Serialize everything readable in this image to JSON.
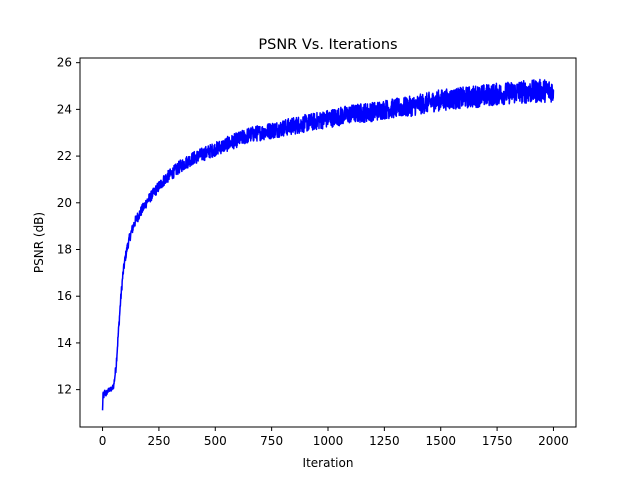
{
  "chart_data": {
    "type": "line",
    "title": "PSNR Vs. Iterations",
    "xlabel": "Iteration",
    "ylabel": "PSNR (dB)",
    "xlim": [
      -100,
      2100
    ],
    "ylim": [
      10.4,
      26.2
    ],
    "xticks": [
      0,
      250,
      500,
      750,
      1000,
      1250,
      1500,
      1750,
      2000
    ],
    "yticks": [
      12,
      14,
      16,
      18,
      20,
      22,
      24,
      26
    ],
    "grid": false,
    "series": [
      {
        "color": "#0000ff",
        "x": [
          0,
          2,
          5,
          10,
          15,
          20,
          30,
          40,
          50,
          60,
          70,
          80,
          90,
          100,
          110,
          120,
          130,
          140,
          150,
          175,
          200,
          225,
          250,
          275,
          300,
          350,
          400,
          450,
          500,
          550,
          600,
          650,
          700,
          750,
          800,
          850,
          900,
          950,
          1000,
          1050,
          1100,
          1150,
          1200,
          1250,
          1300,
          1350,
          1400,
          1450,
          1500,
          1550,
          1600,
          1650,
          1700,
          1750,
          1800,
          1850,
          1900,
          1950,
          2000
        ],
        "y": [
          11.1,
          11.8,
          11.7,
          11.9,
          11.8,
          11.9,
          12.0,
          12.0,
          12.2,
          13.0,
          14.4,
          15.8,
          16.9,
          17.6,
          18.1,
          18.5,
          18.8,
          19.1,
          19.3,
          19.7,
          20.1,
          20.4,
          20.7,
          21.0,
          21.2,
          21.6,
          21.9,
          22.1,
          22.3,
          22.5,
          22.7,
          22.9,
          23.0,
          23.1,
          23.2,
          23.3,
          23.4,
          23.5,
          23.6,
          23.7,
          23.8,
          23.85,
          23.9,
          24.0,
          24.05,
          24.1,
          24.2,
          24.3,
          24.4,
          24.45,
          24.5,
          24.55,
          24.6,
          24.65,
          24.7,
          24.75,
          24.75,
          24.8,
          24.8
        ],
        "noise": [
          0.05,
          0.12,
          0.12,
          0.15,
          0.12,
          0.12,
          0.1,
          0.1,
          0.15,
          0.2,
          0.2,
          0.2,
          0.2,
          0.2,
          0.2,
          0.2,
          0.22,
          0.22,
          0.22,
          0.22,
          0.22,
          0.22,
          0.24,
          0.25,
          0.26,
          0.28,
          0.28,
          0.3,
          0.3,
          0.32,
          0.32,
          0.34,
          0.34,
          0.36,
          0.36,
          0.38,
          0.38,
          0.38,
          0.4,
          0.4,
          0.4,
          0.42,
          0.42,
          0.42,
          0.42,
          0.44,
          0.44,
          0.44,
          0.46,
          0.46,
          0.46,
          0.48,
          0.48,
          0.48,
          0.48,
          0.5,
          0.5,
          0.5,
          0.5
        ]
      }
    ]
  }
}
